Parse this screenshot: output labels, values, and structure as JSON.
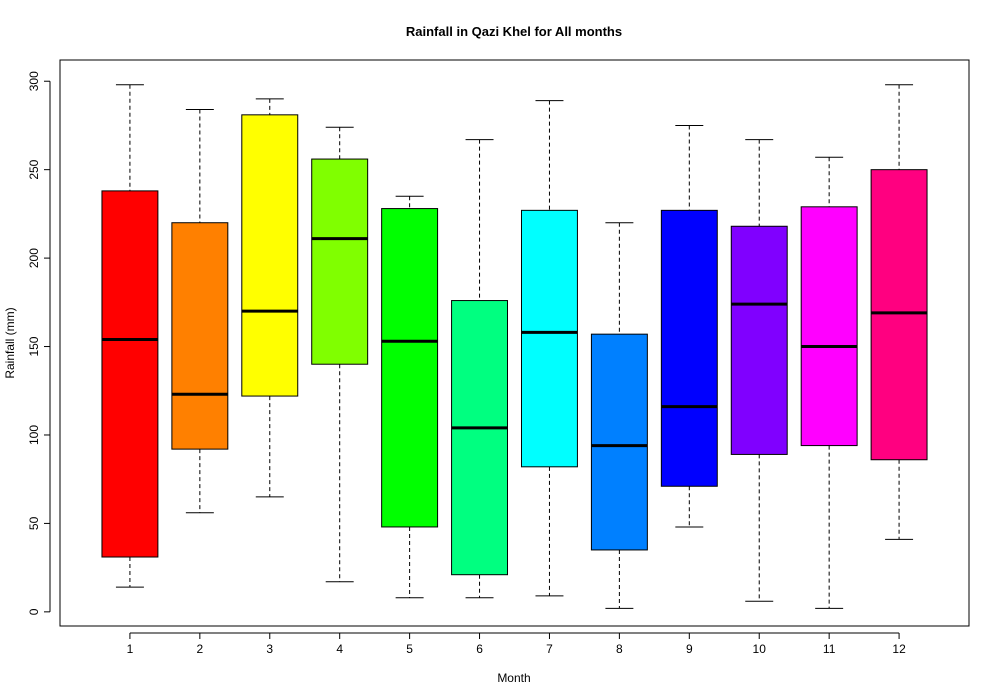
{
  "chart_data": {
    "type": "box",
    "title": "Rainfall in Qazi Khel for All months",
    "xlabel": "Month",
    "ylabel": "Rainfall (mm)",
    "ylim": [
      -8,
      312
    ],
    "yticks": [
      0,
      50,
      100,
      150,
      200,
      250,
      300
    ],
    "categories": [
      "1",
      "2",
      "3",
      "4",
      "5",
      "6",
      "7",
      "8",
      "9",
      "10",
      "11",
      "12"
    ],
    "boxes": [
      {
        "min": 14,
        "q1": 31,
        "median": 154,
        "q3": 238,
        "max": 298,
        "color": "#FF0000"
      },
      {
        "min": 56,
        "q1": 92,
        "median": 123,
        "q3": 220,
        "max": 284,
        "color": "#FF8000"
      },
      {
        "min": 65,
        "q1": 122,
        "median": 170,
        "q3": 281,
        "max": 290,
        "color": "#FFFF00"
      },
      {
        "min": 17,
        "q1": 140,
        "median": 211,
        "q3": 256,
        "max": 274,
        "color": "#80FF00"
      },
      {
        "min": 8,
        "q1": 48,
        "median": 153,
        "q3": 228,
        "max": 235,
        "color": "#00FF00"
      },
      {
        "min": 8,
        "q1": 21,
        "median": 104,
        "q3": 176,
        "max": 267,
        "color": "#00FF80"
      },
      {
        "min": 9,
        "q1": 82,
        "median": 158,
        "q3": 227,
        "max": 289,
        "color": "#00FFFF"
      },
      {
        "min": 2,
        "q1": 35,
        "median": 94,
        "q3": 157,
        "max": 220,
        "color": "#0080FF"
      },
      {
        "min": 48,
        "q1": 71,
        "median": 116,
        "q3": 227,
        "max": 275,
        "color": "#0000FF"
      },
      {
        "min": 6,
        "q1": 89,
        "median": 174,
        "q3": 218,
        "max": 267,
        "color": "#8000FF"
      },
      {
        "min": 2,
        "q1": 94,
        "median": 150,
        "q3": 229,
        "max": 257,
        "color": "#FF00FF"
      },
      {
        "min": 41,
        "q1": 86,
        "median": 169,
        "q3": 250,
        "max": 298,
        "color": "#FF0080"
      }
    ]
  }
}
